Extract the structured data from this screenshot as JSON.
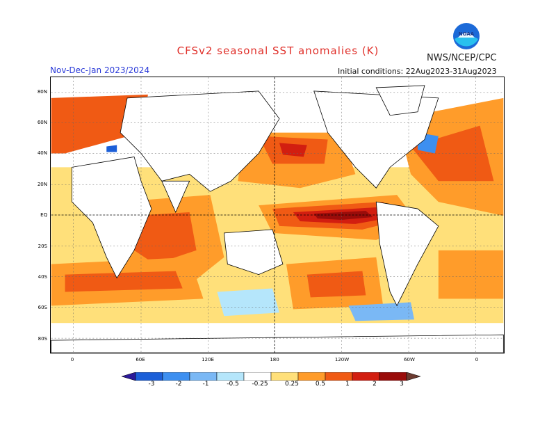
{
  "title": "CFSv2 seasonal SST anomalies (K)",
  "organization": "NWS/NCEP/CPC",
  "logo_text": "NOAA",
  "period": "Nov-Dec-Jan 2023/2024",
  "initial_conditions": "Initial conditions: 22Aug2023-31Aug2023",
  "lat_labels": [
    "80N",
    "60N",
    "40N",
    "20N",
    "EQ",
    "20S",
    "40S",
    "60S",
    "80S"
  ],
  "lon_labels": [
    "0",
    "60E",
    "120E",
    "180",
    "120W",
    "60W",
    "0"
  ],
  "legend": {
    "labels": [
      "-3",
      "-2",
      "-1",
      "-0.5",
      "-0.25",
      "0.25",
      "0.5",
      "1",
      "2",
      "3"
    ],
    "colors": [
      "#2c1a9a",
      "#1c5fd8",
      "#3d8ff0",
      "#7ab8f5",
      "#b5e6fb",
      "#ffffff",
      "#ffe07a",
      "#ff9c2a",
      "#f05a14",
      "#d21e10",
      "#9a0c0a",
      "#6b3a30"
    ]
  },
  "colors": {
    "land": "#ffffff",
    "neutral": "#ffffff",
    "title": "#e0302a",
    "period": "#2a3ad8"
  }
}
